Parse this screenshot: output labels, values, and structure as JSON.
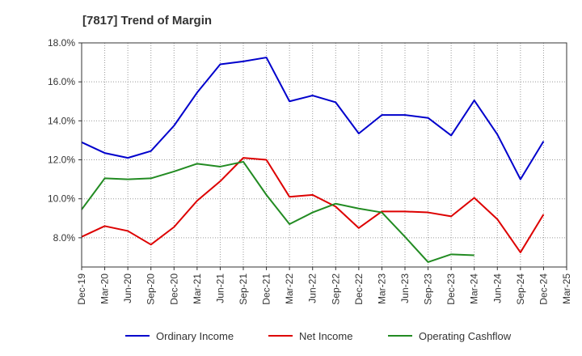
{
  "chart_data": {
    "type": "line",
    "title": "[7817]  Trend of Margin",
    "xlabel": "",
    "ylabel": "",
    "ylim": [
      6.5,
      18.0
    ],
    "yticks": [
      8.0,
      10.0,
      12.0,
      14.0,
      16.0,
      18.0
    ],
    "y_tick_labels": [
      "8.0%",
      "10.0%",
      "12.0%",
      "14.0%",
      "16.0%",
      "18.0%"
    ],
    "categories": [
      "Dec-19",
      "Mar-20",
      "Jun-20",
      "Sep-20",
      "Dec-20",
      "Mar-21",
      "Jun-21",
      "Sep-21",
      "Dec-21",
      "Mar-22",
      "Jun-22",
      "Sep-22",
      "Dec-22",
      "Mar-23",
      "Jun-23",
      "Sep-23",
      "Dec-23",
      "Mar-24",
      "Jun-24",
      "Sep-24",
      "Dec-24",
      "Mar-25"
    ],
    "grid": true,
    "legend_position": "bottom",
    "series": [
      {
        "name": "Ordinary Income",
        "color": "#0000cc",
        "values": [
          12.9,
          12.35,
          12.1,
          12.45,
          13.75,
          15.45,
          16.9,
          17.05,
          17.25,
          15.0,
          15.3,
          14.95,
          13.35,
          14.3,
          14.3,
          14.15,
          13.25,
          15.05,
          13.3,
          11.0,
          12.95,
          null
        ]
      },
      {
        "name": "Net Income",
        "color": "#dd0000",
        "values": [
          8.05,
          8.6,
          8.35,
          7.65,
          8.55,
          9.9,
          10.9,
          12.1,
          12.0,
          10.1,
          10.2,
          9.6,
          8.5,
          9.35,
          9.35,
          9.3,
          9.1,
          10.05,
          8.95,
          7.25,
          9.2,
          null
        ]
      },
      {
        "name": "Operating Cashflow",
        "color": "#228b22",
        "values": [
          9.45,
          11.05,
          11.0,
          11.05,
          11.4,
          11.8,
          11.65,
          11.9,
          10.2,
          8.7,
          9.3,
          9.75,
          9.5,
          9.3,
          8.05,
          6.75,
          7.15,
          7.1,
          null,
          null,
          null,
          null
        ]
      }
    ]
  }
}
